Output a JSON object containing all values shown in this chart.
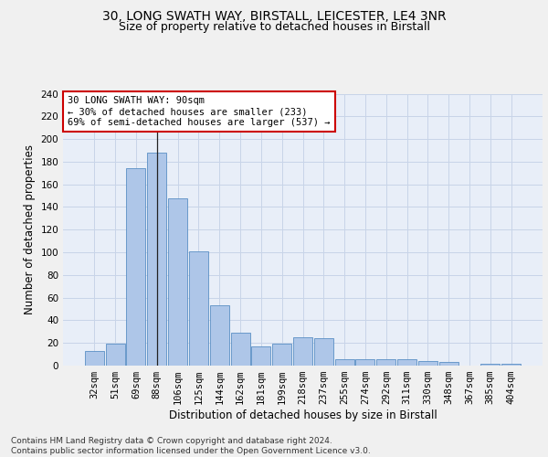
{
  "title_line1": "30, LONG SWATH WAY, BIRSTALL, LEICESTER, LE4 3NR",
  "title_line2": "Size of property relative to detached houses in Birstall",
  "xlabel": "Distribution of detached houses by size in Birstall",
  "ylabel": "Number of detached properties",
  "categories": [
    "32sqm",
    "51sqm",
    "69sqm",
    "88sqm",
    "106sqm",
    "125sqm",
    "144sqm",
    "162sqm",
    "181sqm",
    "199sqm",
    "218sqm",
    "237sqm",
    "255sqm",
    "274sqm",
    "292sqm",
    "311sqm",
    "330sqm",
    "348sqm",
    "367sqm",
    "385sqm",
    "404sqm"
  ],
  "values": [
    13,
    19,
    174,
    188,
    148,
    101,
    53,
    29,
    17,
    19,
    25,
    24,
    6,
    6,
    6,
    6,
    4,
    3,
    0,
    2,
    2
  ],
  "bar_color": "#aec6e8",
  "bar_edge_color": "#5a8fc4",
  "highlight_index": 3,
  "highlight_line_color": "#222222",
  "annotation_text": "30 LONG SWATH WAY: 90sqm\n← 30% of detached houses are smaller (233)\n69% of semi-detached houses are larger (537) →",
  "annotation_box_color": "#ffffff",
  "annotation_box_edge": "#cc0000",
  "ylim": [
    0,
    240
  ],
  "yticks": [
    0,
    20,
    40,
    60,
    80,
    100,
    120,
    140,
    160,
    180,
    200,
    220,
    240
  ],
  "grid_color": "#c8d4e8",
  "background_color": "#e8eef8",
  "footer_text": "Contains HM Land Registry data © Crown copyright and database right 2024.\nContains public sector information licensed under the Open Government Licence v3.0.",
  "title_fontsize": 10,
  "subtitle_fontsize": 9,
  "axis_label_fontsize": 8.5,
  "tick_fontsize": 7.5,
  "footer_fontsize": 6.5
}
